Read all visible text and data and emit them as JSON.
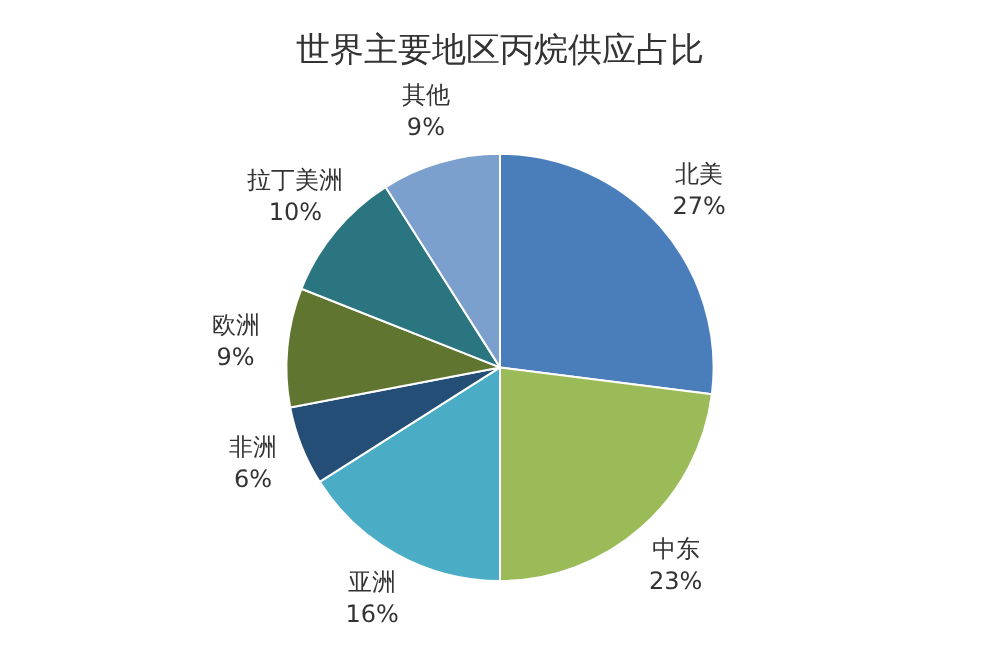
{
  "chart_data": {
    "type": "pie",
    "title": "世界主要地区丙烷供应占比",
    "categories": [
      "北美",
      "中东",
      "亚洲",
      "非洲",
      "欧洲",
      "拉丁美洲",
      "其他"
    ],
    "values": [
      27,
      23,
      16,
      6,
      9,
      10,
      9
    ],
    "colors": [
      "#4a7ebb",
      "#9bbb59",
      "#4bacc6",
      "#254e77",
      "#5f7530",
      "#2b7581",
      "#7ba0cd"
    ],
    "value_labels": [
      "27%",
      "23%",
      "16%",
      "6%",
      "9%",
      "10%",
      "9%"
    ]
  }
}
